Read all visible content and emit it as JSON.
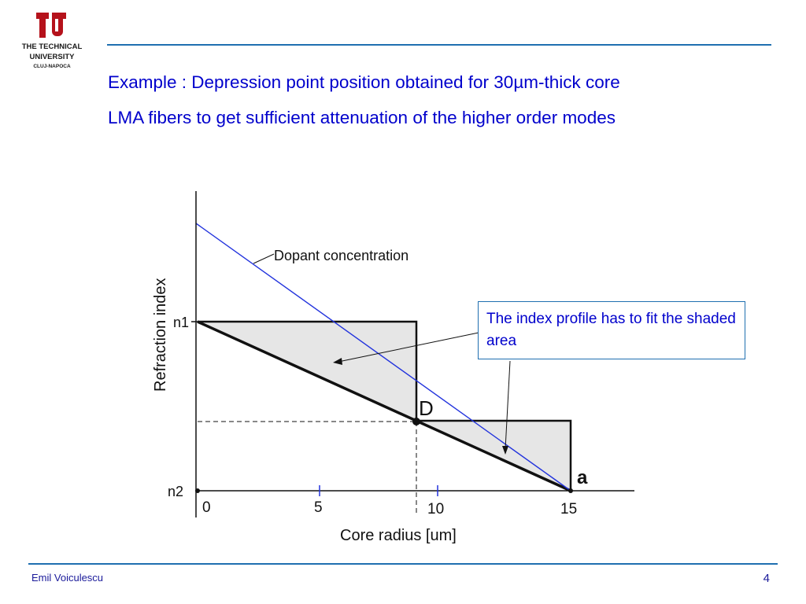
{
  "logo": {
    "line1": "THE TECHNICAL",
    "line2": "UNIVERSITY",
    "line3": "CLUJ-NAPOCA",
    "color": "#b5121b"
  },
  "title": {
    "line1": "Example : Depression point position obtained for 30µm-thick core",
    "line2": "LMA fibers to get sufficient attenuation of the higher order modes"
  },
  "diagram": {
    "y_axis_label": "Refraction index",
    "x_axis_label": "Core radius [um]",
    "x_ticks": [
      "0",
      "5",
      "10",
      "15"
    ],
    "y_ticks": [
      "n1",
      "n2"
    ],
    "dopant_label": "Dopant concentration",
    "depression_point_label": "D",
    "core_edge_label": "a",
    "callout": "The index profile has to fit the shaded area",
    "colors": {
      "dopant_line": "#2233dd",
      "shade": "#e6e6e6",
      "accent": "#1f6fb0"
    }
  },
  "footer": {
    "author": "Emil Voiculescu",
    "page": "4"
  }
}
